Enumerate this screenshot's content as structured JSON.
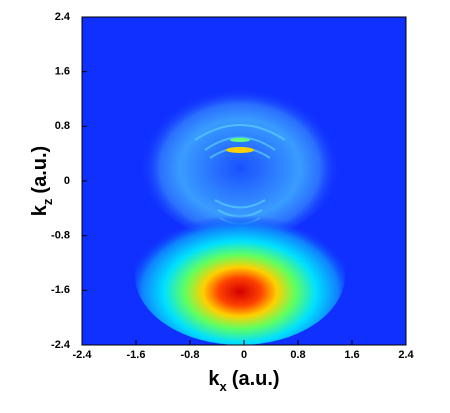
{
  "chart_data": {
    "type": "heatmap",
    "xlabel": {
      "symbol": "k",
      "subscript": "x",
      "unit": "(a.u.)"
    },
    "ylabel": {
      "symbol": "k",
      "subscript": "z",
      "unit": "(a.u.)"
    },
    "xlim": [
      -2.4,
      2.4
    ],
    "ylim": [
      -2.4,
      2.4
    ],
    "xticks": [
      -2.4,
      -1.6,
      -0.8,
      0,
      0.8,
      1.6,
      2.4
    ],
    "yticks": [
      -2.4,
      -1.6,
      -0.8,
      0,
      0.8,
      1.6,
      2.4
    ],
    "background": "#1030ff"
  }
}
